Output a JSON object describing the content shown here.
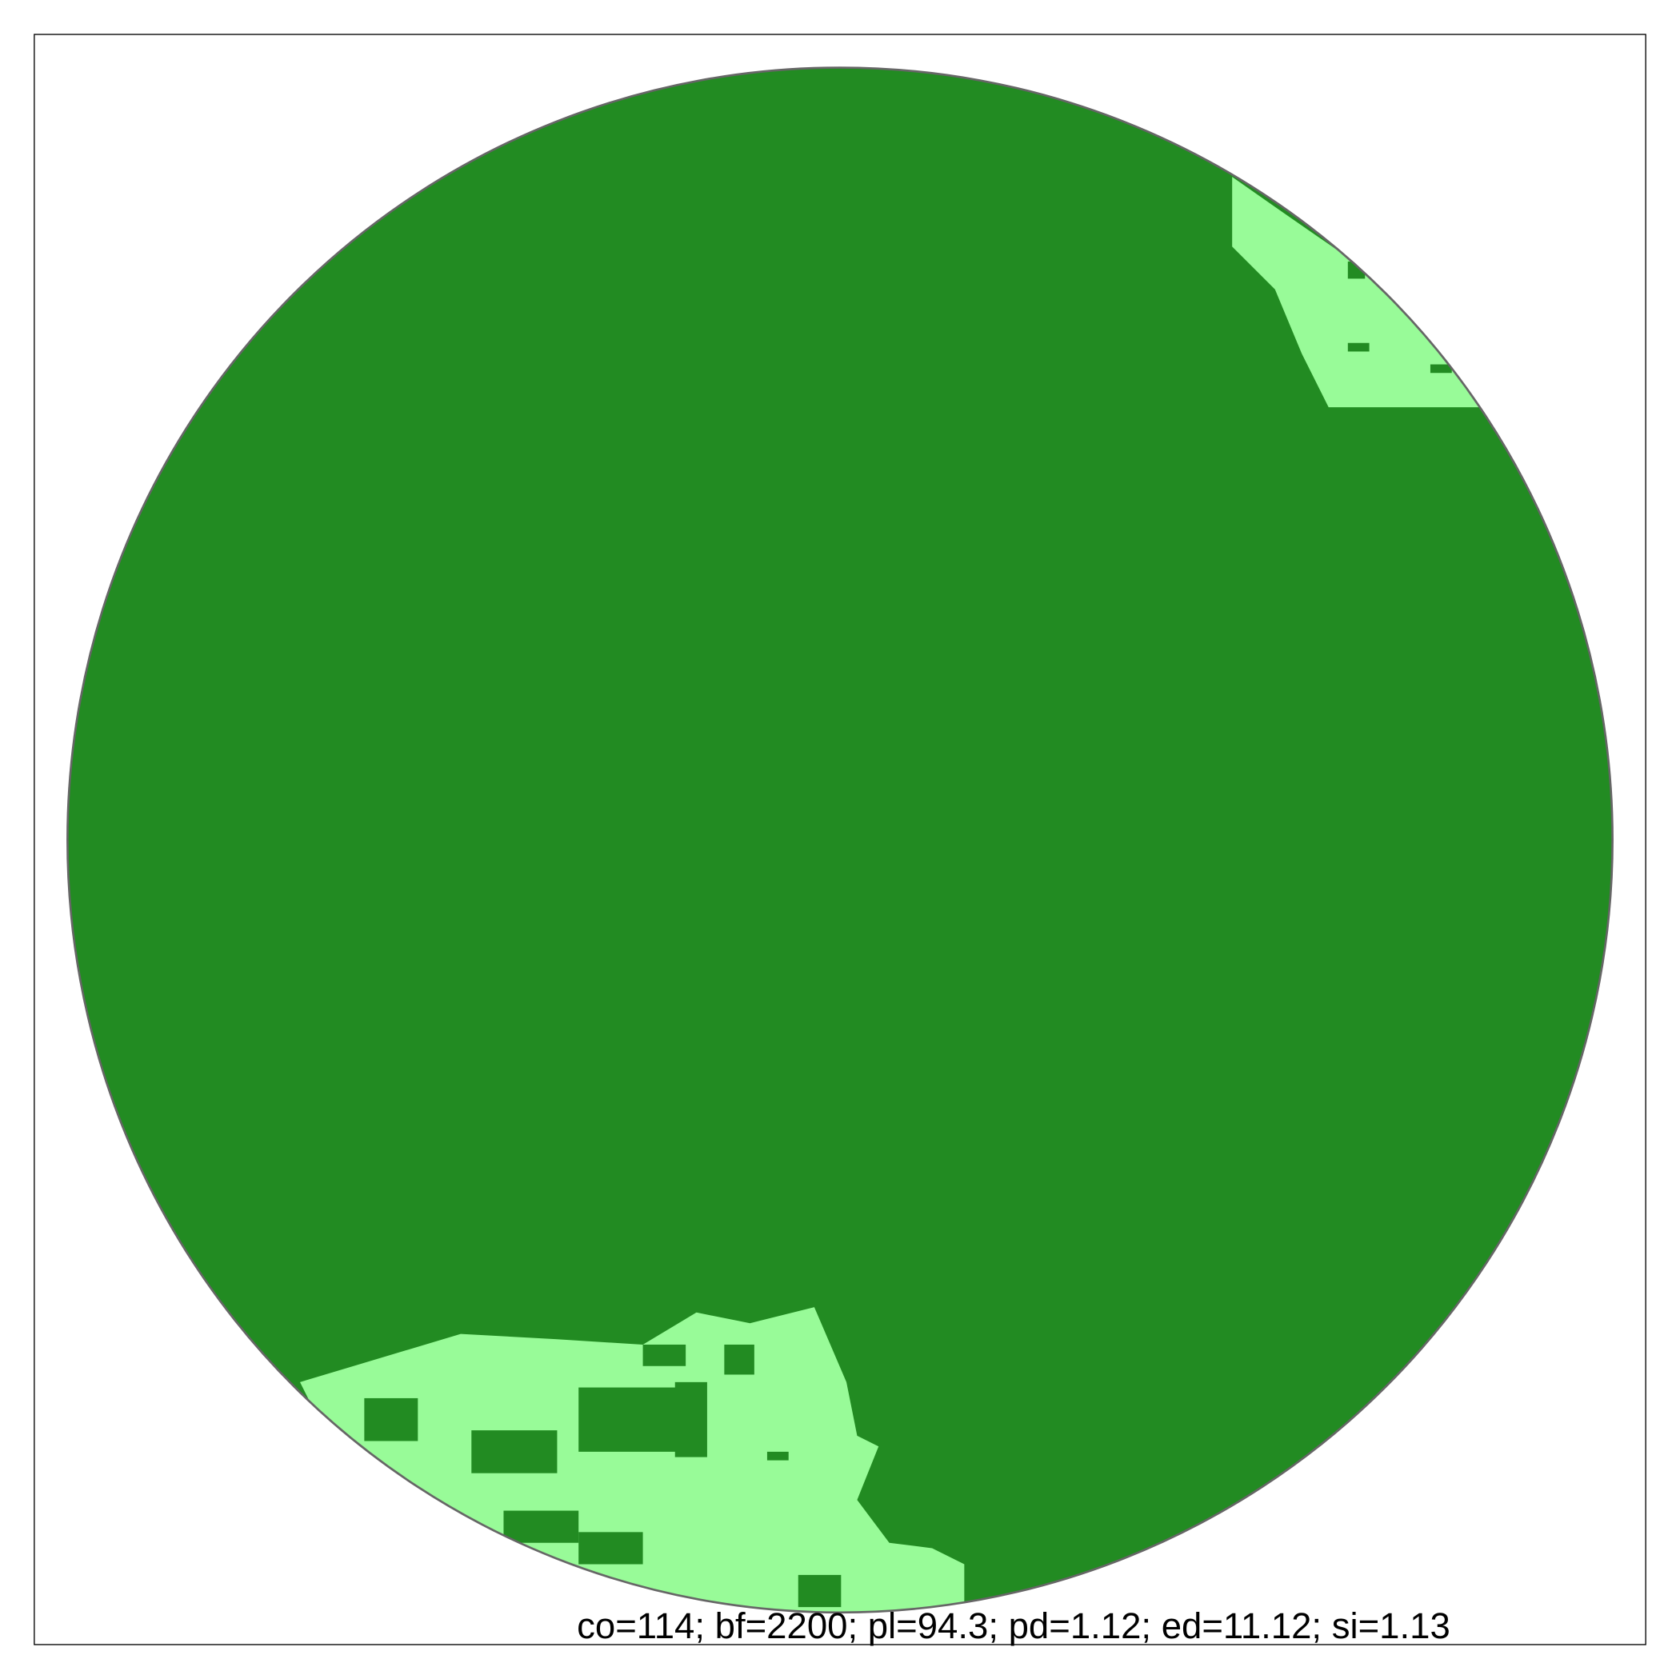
{
  "caption": "co=114; bf=2200; pl=94.3; pd=1.12; ed=11.12; si=1.13"
}
